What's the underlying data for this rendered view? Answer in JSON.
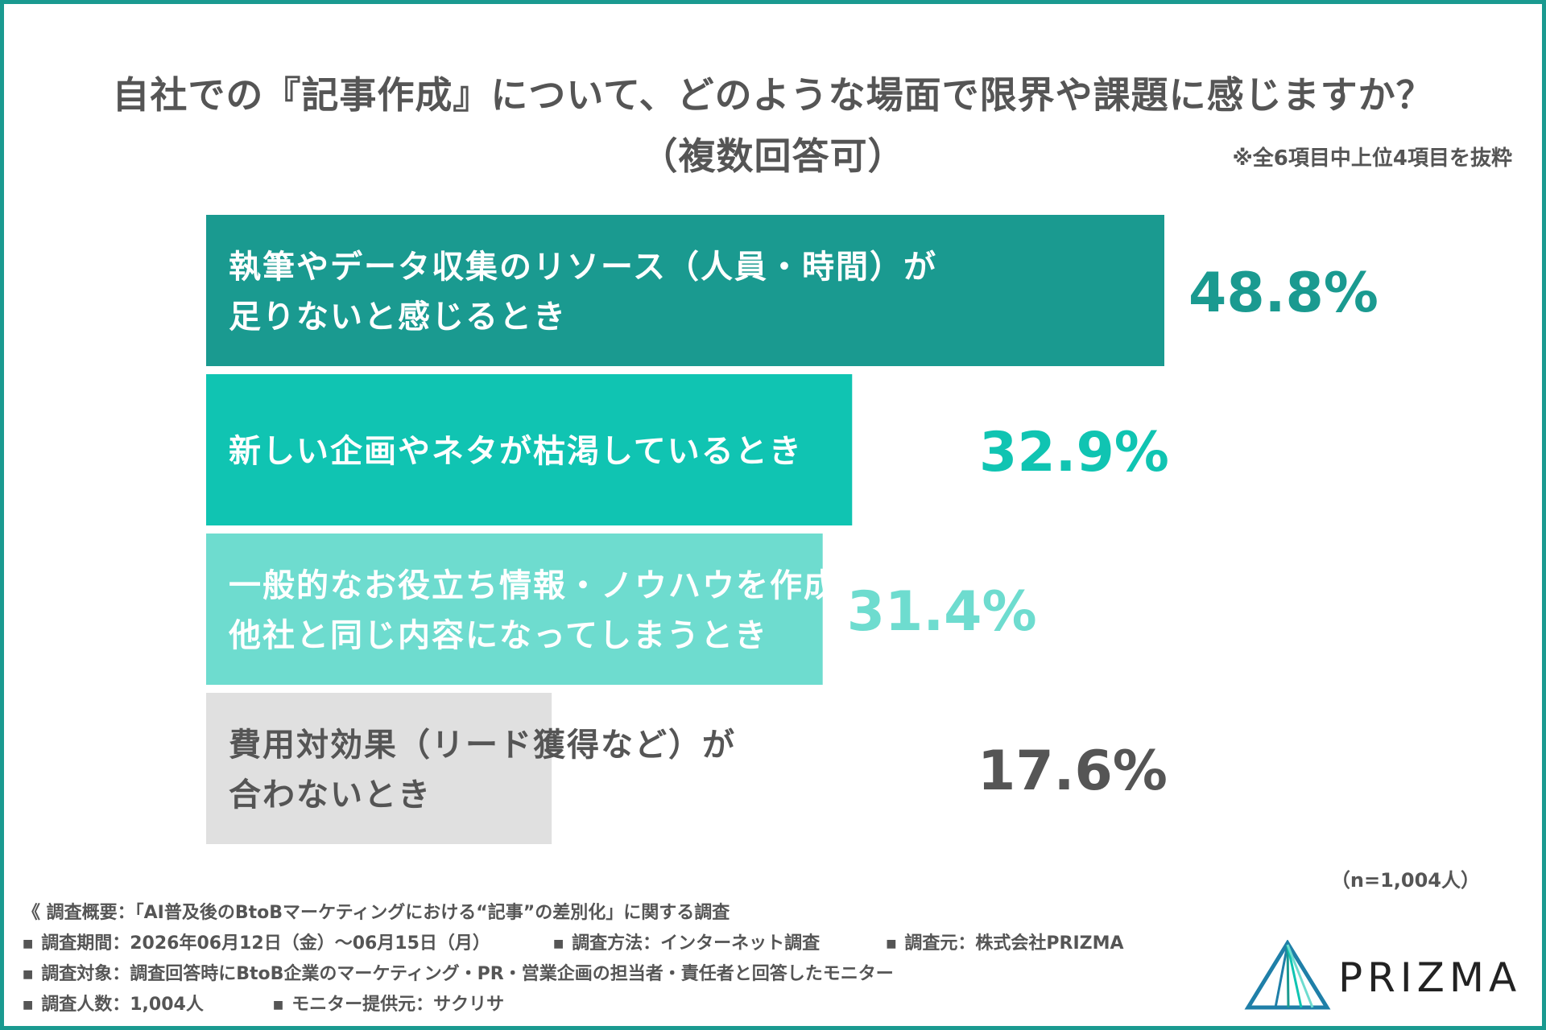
{
  "title": {
    "line1": "自社での『記事作成』について、どのような場面で限界や課題に感じますか？",
    "line2": "（複数回答可）"
  },
  "note": "※全6項目中上位4項目を抜粋",
  "chart_data": {
    "type": "bar",
    "orientation": "horizontal",
    "categories": [
      [
        "執筆やデータ収集のリソース（人員・時間）が",
        "足りないと感じるとき"
      ],
      [
        "新しい企画やネタが枯渇しているとき"
      ],
      [
        "一般的なお役立ち情報・ノウハウを作成し、",
        "他社と同じ内容になってしまうとき"
      ],
      [
        "費用対効果（リード獲得など）が",
        "合わないとき"
      ]
    ],
    "values": [
      48.8,
      32.9,
      31.4,
      17.6
    ],
    "value_labels": [
      "48.8%",
      "32.9%",
      "31.4%",
      "17.6%"
    ],
    "bar_colors": [
      "#1a9a90",
      "#10c4b2",
      "#6edccf",
      "#e0e0e0"
    ],
    "label_colors": [
      "#ffffff",
      "#ffffff",
      "#ffffff",
      "#555555"
    ],
    "value_colors": [
      "#1a9a90",
      "#10c4b2",
      "#6edccf",
      "#555555"
    ],
    "grid": false,
    "legend": "none"
  },
  "n_label": "（n=1,004人）",
  "survey": {
    "overview": "《 調査概要：「AI普及後のBtoBマーケティングにおける“記事”の差別化」に関する調査",
    "period": "調査期間：2026年06月12日（金）〜06月15日（月）",
    "method": "調査方法：インターネット調査",
    "source": "調査元：株式会社PRIZMA",
    "target": "調査対象：調査回答時にBtoB企業のマーケティング・PR・営業企画の担当者・責任者と回答したモニター",
    "count": "調査人数：1,004人",
    "provider": "モニター提供元：サクリサ"
  },
  "logo": {
    "text": "PRIZMA",
    "icon": "prism-triangle-icon"
  }
}
